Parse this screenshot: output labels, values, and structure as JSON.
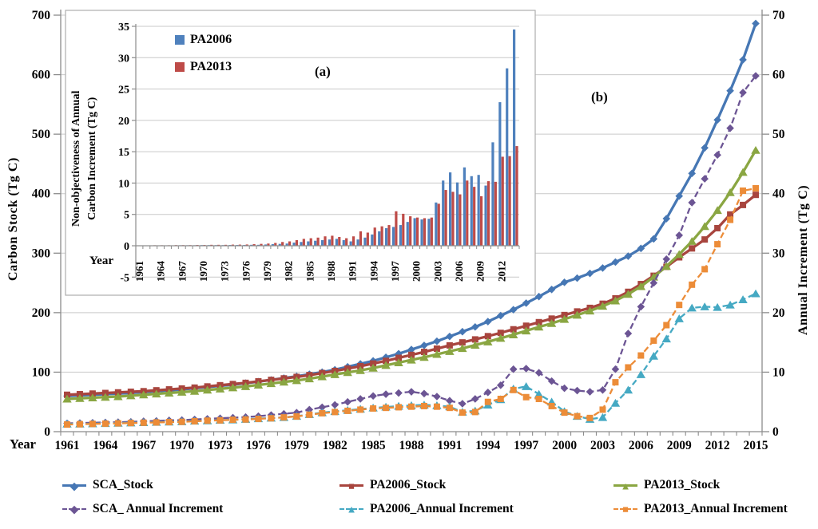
{
  "colors": {
    "grid": "#C9C9C9",
    "axis": "#8C8C8C",
    "text": "#000000",
    "background": "#FFFFFF"
  },
  "figure": {
    "y_left_title": "Carbon Stock (Tg C)",
    "y_right_title": "Annual Increment (Tg C)",
    "x_title": "Year",
    "panel_b": "(b)"
  },
  "inset": {
    "y_title_line1": "Non-objectiveness of Annual",
    "y_title_line2": "Carbon Increment (Tg C)",
    "x_title": "Year",
    "panel_a": "(a)"
  },
  "chart_data": [
    {
      "type": "line",
      "panel": "(b)",
      "x_label": "Year",
      "y_left": {
        "title": "Carbon Stock (Tg C)",
        "min": 0,
        "max": 700,
        "ticks": [
          0,
          100,
          200,
          300,
          400,
          500,
          600,
          700
        ]
      },
      "y_right": {
        "title": "Annual Increment (Tg C)",
        "min": 0,
        "max": 70,
        "ticks": [
          0,
          10,
          20,
          30,
          40,
          50,
          60,
          70
        ]
      },
      "years": [
        1961,
        1962,
        1963,
        1964,
        1965,
        1966,
        1967,
        1968,
        1969,
        1970,
        1971,
        1972,
        1973,
        1974,
        1975,
        1976,
        1977,
        1978,
        1979,
        1980,
        1981,
        1982,
        1983,
        1984,
        1985,
        1986,
        1987,
        1988,
        1989,
        1990,
        1991,
        1992,
        1993,
        1994,
        1995,
        1996,
        1997,
        1998,
        1999,
        2000,
        2001,
        2002,
        2003,
        2004,
        2005,
        2006,
        2007,
        2008,
        2009,
        2010,
        2011,
        2012,
        2013,
        2014,
        2015
      ],
      "x_tick_years": [
        1961,
        1964,
        1967,
        1970,
        1973,
        1976,
        1979,
        1982,
        1985,
        1988,
        1991,
        1994,
        1997,
        2000,
        2003,
        2006,
        2009,
        2012,
        2015
      ],
      "series": [
        {
          "name": "SCA_Stock",
          "label": "SCA_Stock",
          "axis": "left",
          "line": "solid",
          "marker": "diamond",
          "color": "#4677B4",
          "values": [
            60,
            61,
            62,
            63,
            64,
            65,
            66.5,
            68,
            69.5,
            71,
            73,
            75,
            77,
            79,
            81.5,
            84,
            87,
            90,
            93,
            96.5,
            100,
            104,
            109,
            114,
            119,
            125,
            131,
            138,
            145,
            152,
            160,
            168,
            176,
            185,
            195,
            205,
            216,
            227,
            239,
            251,
            258,
            266,
            275,
            285,
            295,
            308,
            324,
            358,
            396,
            434,
            477,
            524,
            573,
            625,
            686
          ]
        },
        {
          "name": "PA2006_Stock",
          "label": "PA2006_Stock",
          "axis": "left",
          "line": "solid",
          "marker": "square",
          "color": "#A8453E",
          "values": [
            62,
            63,
            64,
            65,
            66,
            67,
            68,
            69.5,
            71,
            72.5,
            74,
            76,
            78,
            80,
            82,
            84.5,
            87,
            89.5,
            92,
            95,
            98.5,
            102,
            106,
            110,
            114.5,
            119,
            124,
            129,
            134,
            139.5,
            145,
            150,
            155,
            160.5,
            166,
            172,
            178,
            184,
            190,
            196,
            202,
            208,
            215,
            224,
            235,
            248,
            262,
            277,
            293,
            308,
            323,
            342,
            365,
            381,
            398
          ]
        },
        {
          "name": "PA2013_Stock",
          "label": "PA2013_Stock",
          "axis": "left",
          "line": "solid",
          "marker": "triangle",
          "color": "#8AA642",
          "values": [
            55,
            56,
            57,
            58,
            59,
            60.5,
            62,
            63.5,
            65,
            66.5,
            68,
            70,
            72,
            74,
            76,
            78.5,
            81,
            83.5,
            86,
            89,
            92.5,
            96,
            99.5,
            103,
            107,
            111.5,
            116,
            120.5,
            125,
            130,
            135,
            140,
            145.5,
            151,
            157,
            163,
            169.5,
            176,
            182,
            189,
            196,
            203,
            211,
            220,
            231,
            244,
            260,
            278,
            298,
            320,
            345,
            372,
            402,
            436,
            473
          ]
        },
        {
          "name": "SCA_Annual_Increment",
          "label": "SCA_ Annual Increment",
          "axis": "right",
          "line": "dashed",
          "marker": "diamond",
          "color": "#6C5594",
          "values": [
            1.4,
            1.45,
            1.5,
            1.55,
            1.6,
            1.65,
            1.75,
            1.8,
            1.9,
            1.95,
            2.05,
            2.15,
            2.25,
            2.35,
            2.45,
            2.6,
            2.8,
            3.0,
            3.2,
            3.7,
            4.1,
            4.5,
            5.0,
            5.5,
            6.0,
            6.3,
            6.5,
            6.7,
            6.4,
            5.9,
            5.2,
            4.7,
            5.5,
            6.6,
            7.8,
            10.5,
            10.6,
            9.9,
            8.5,
            7.3,
            6.9,
            6.7,
            7.0,
            10.5,
            16.5,
            21.0,
            25.0,
            29.0,
            33.0,
            38.5,
            42.5,
            46.5,
            51.0,
            57.0,
            59.8
          ]
        },
        {
          "name": "PA2006_Annual_Increment",
          "label": "PA2006_Annual Increment",
          "axis": "right",
          "line": "dashed",
          "marker": "triangle",
          "color": "#45A9C3",
          "values": [
            1.3,
            1.3,
            1.35,
            1.4,
            1.45,
            1.5,
            1.55,
            1.6,
            1.65,
            1.7,
            1.8,
            1.85,
            1.95,
            2.0,
            2.1,
            2.2,
            2.3,
            2.4,
            2.6,
            2.9,
            3.2,
            3.4,
            3.6,
            3.8,
            4.0,
            4.15,
            4.3,
            4.4,
            4.5,
            4.4,
            4.2,
            3.3,
            3.5,
            4.5,
            5.4,
            7.2,
            7.6,
            6.3,
            5.0,
            3.4,
            2.6,
            2.1,
            2.4,
            4.8,
            7.0,
            9.6,
            12.7,
            15.6,
            19.0,
            20.8,
            21.0,
            20.9,
            21.3,
            22.2,
            23.2
          ]
        },
        {
          "name": "PA2013_Annual_Increment",
          "label": "PA2013_Annual Increment",
          "axis": "right",
          "line": "dashed",
          "marker": "square",
          "color": "#EC8C38",
          "values": [
            1.2,
            1.25,
            1.3,
            1.35,
            1.4,
            1.45,
            1.5,
            1.55,
            1.6,
            1.65,
            1.75,
            1.85,
            1.9,
            2.0,
            2.05,
            2.15,
            2.25,
            2.4,
            2.55,
            2.85,
            3.1,
            3.3,
            3.5,
            3.7,
            3.9,
            4.0,
            4.1,
            4.2,
            4.3,
            4.2,
            4.0,
            3.2,
            3.3,
            5.0,
            5.5,
            7.0,
            5.8,
            5.5,
            4.3,
            3.2,
            2.6,
            2.3,
            3.7,
            8.3,
            10.8,
            12.8,
            15.3,
            17.9,
            21.3,
            24.7,
            27.3,
            31.5,
            35.6,
            40.5,
            40.9
          ]
        }
      ]
    },
    {
      "type": "bar",
      "panel": "(a)",
      "title": "Non-objectiveness of Annual Carbon Increment (Tg C)",
      "x_label": "Year",
      "ylim": [
        -5,
        35
      ],
      "y_ticks": [
        -5,
        0,
        5,
        10,
        15,
        20,
        25,
        30,
        35
      ],
      "years": [
        1961,
        1962,
        1963,
        1964,
        1965,
        1966,
        1967,
        1968,
        1969,
        1970,
        1971,
        1972,
        1973,
        1974,
        1975,
        1976,
        1977,
        1978,
        1979,
        1980,
        1981,
        1982,
        1983,
        1984,
        1985,
        1986,
        1987,
        1988,
        1989,
        1990,
        1991,
        1992,
        1993,
        1994,
        1995,
        1996,
        1997,
        1998,
        1999,
        2000,
        2001,
        2002,
        2003,
        2004,
        2005,
        2006,
        2007,
        2008,
        2009,
        2010,
        2011,
        2012,
        2013,
        2014
      ],
      "x_tick_years": [
        1961,
        1964,
        1967,
        1970,
        1973,
        1976,
        1979,
        1982,
        1985,
        1988,
        1991,
        1994,
        1997,
        2000,
        2003,
        2006,
        2009,
        2012
      ],
      "series": [
        {
          "name": "PA2006",
          "color": "#4F81BD",
          "values": [
            0.05,
            0.05,
            0.05,
            0.05,
            0.05,
            0.05,
            0.08,
            0.08,
            0.08,
            0.1,
            0.1,
            0.1,
            0.1,
            0.12,
            0.12,
            0.12,
            0.15,
            0.15,
            0.2,
            0.25,
            0.3,
            0.35,
            0.5,
            0.6,
            0.7,
            0.8,
            0.9,
            1.0,
            1.1,
            0.9,
            0.7,
            1.0,
            1.3,
            1.8,
            2.3,
            2.8,
            3.0,
            3.3,
            3.8,
            4.4,
            4.2,
            4.3,
            6.9,
            10.4,
            11.7,
            10.1,
            12.5,
            11.1,
            11.3,
            9.6,
            16.5,
            22.9,
            28.3,
            34.5
          ]
        },
        {
          "name": "PA2013",
          "color": "#BE4B48",
          "values": [
            0.05,
            0.05,
            0.08,
            0.08,
            0.08,
            0.1,
            0.1,
            0.1,
            0.12,
            0.12,
            0.15,
            0.15,
            0.15,
            0.18,
            0.18,
            0.2,
            0.25,
            0.3,
            0.35,
            0.45,
            0.6,
            0.7,
            0.9,
            1.1,
            1.2,
            1.3,
            1.5,
            1.6,
            1.4,
            1.2,
            1.5,
            2.3,
            2.1,
            2.9,
            3.1,
            3.3,
            5.5,
            5.1,
            4.7,
            4.5,
            4.4,
            4.5,
            6.7,
            8.9,
            8.6,
            8.2,
            10.4,
            9.4,
            7.9,
            10.3,
            10.2,
            14.2,
            14.3,
            15.9
          ]
        }
      ]
    }
  ]
}
